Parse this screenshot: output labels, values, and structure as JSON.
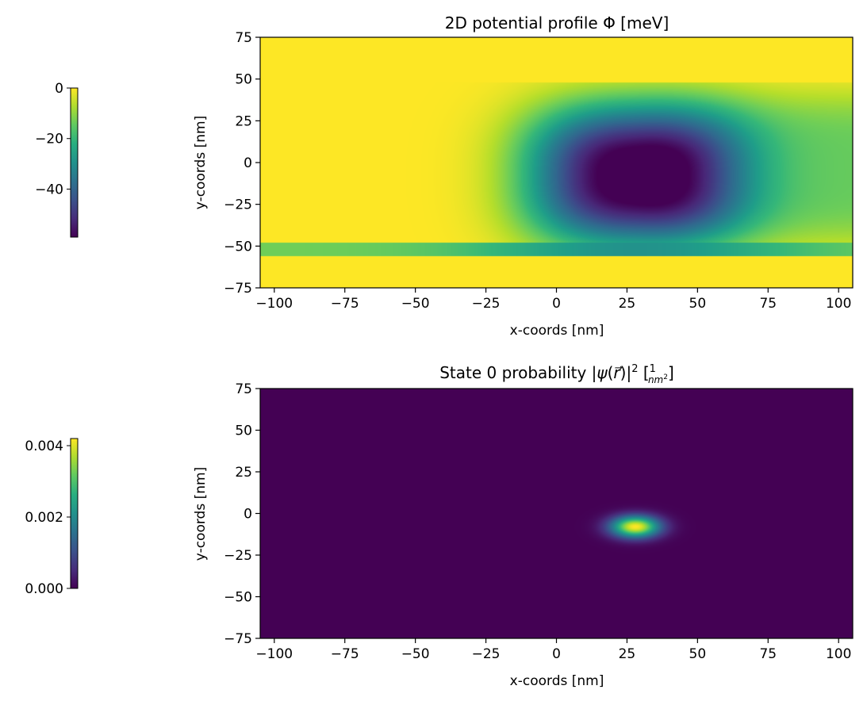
{
  "chart_data": [
    {
      "type": "heatmap",
      "title": "2D potential profile Φ [meV]",
      "xlabel": "x-coords [nm]",
      "ylabel": "y-coords [nm]",
      "xlim": [
        -105,
        105
      ],
      "ylim": [
        -75,
        75
      ],
      "xticks": [
        -100,
        -75,
        -50,
        -25,
        0,
        25,
        50,
        75,
        100
      ],
      "yticks": [
        75,
        50,
        25,
        0,
        -25,
        -50,
        -75
      ],
      "xtick_labels": [
        "−100",
        "−75",
        "−50",
        "−25",
        "0",
        "25",
        "50",
        "75",
        "100"
      ],
      "ytick_labels": [
        "75",
        "50",
        "25",
        "0",
        "−25",
        "−50",
        "−75"
      ],
      "colormap": "viridis",
      "colorbar": {
        "vmin": -59,
        "vmax": 0,
        "ticks": [
          0,
          -20,
          -40
        ],
        "tick_labels": [
          "0",
          "−20",
          "−40"
        ]
      },
      "features": {
        "background_value": 0,
        "well_center": [
          28,
          -8
        ],
        "well_min": -59,
        "gate_bands_y": [
          [
            -75,
            -56
          ],
          [
            48,
            75
          ]
        ],
        "lower_stripe_y": [
          -56,
          -48
        ]
      }
    },
    {
      "type": "heatmap",
      "title": "State 0 probability |ψ(r⃗)|² [1/nm²]",
      "xlabel": "x-coords [nm]",
      "ylabel": "y-coords [nm]",
      "xlim": [
        -105,
        105
      ],
      "ylim": [
        -75,
        75
      ],
      "xticks": [
        -100,
        -75,
        -50,
        -25,
        0,
        25,
        50,
        75,
        100
      ],
      "yticks": [
        75,
        50,
        25,
        0,
        -25,
        -50,
        -75
      ],
      "xtick_labels": [
        "−100",
        "−75",
        "−50",
        "−25",
        "0",
        "25",
        "50",
        "75",
        "100"
      ],
      "ytick_labels": [
        "75",
        "50",
        "25",
        "0",
        "−25",
        "−50",
        "−75"
      ],
      "colormap": "viridis",
      "colorbar": {
        "vmin": 0,
        "vmax": 0.0042,
        "ticks": [
          0.004,
          0.002,
          0.0
        ],
        "tick_labels": [
          "0.004",
          "0.002",
          "0.000"
        ]
      },
      "features": {
        "peak_center": [
          28,
          -8
        ],
        "peak_value": 0.0042,
        "sigma_x_nm": 6,
        "sigma_y_nm": 4.5
      }
    }
  ]
}
